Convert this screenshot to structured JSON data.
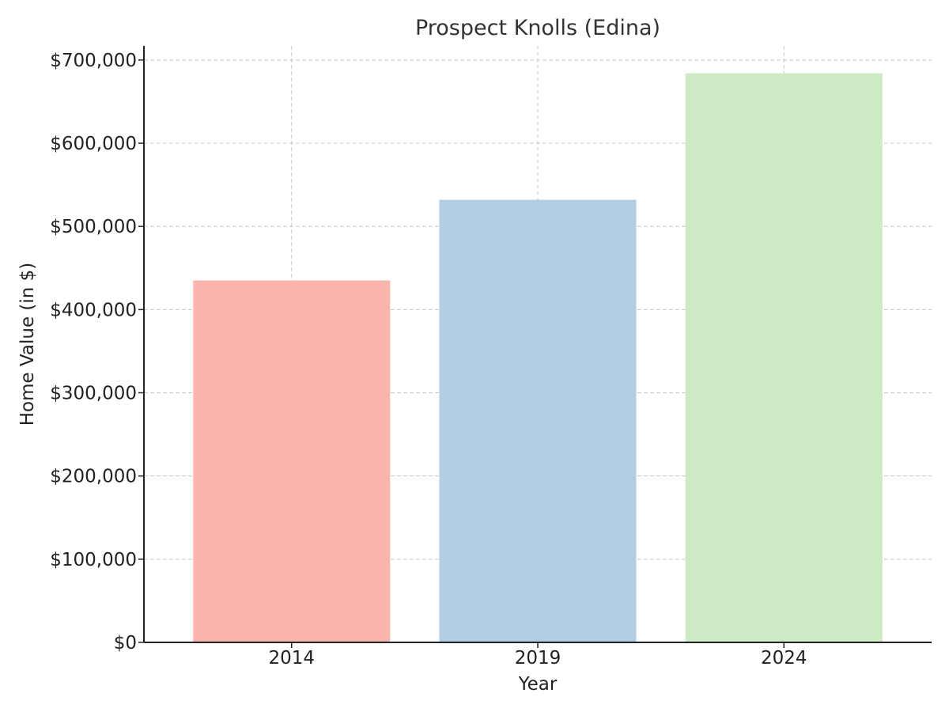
{
  "chart_data": {
    "type": "bar",
    "title": "Prospect Knolls (Edina)",
    "xlabel": "Year",
    "ylabel": "Home Value (in $)",
    "categories": [
      "2014",
      "2019",
      "2024"
    ],
    "values": [
      435000,
      532000,
      684000
    ],
    "colors": [
      "#fbb4ae",
      "#b3cde3",
      "#ccebc5"
    ],
    "ylim": [
      0,
      717000
    ],
    "yticks": [
      0,
      100000,
      200000,
      300000,
      400000,
      500000,
      600000,
      700000
    ],
    "ytick_labels": [
      "$0",
      "$100,000",
      "$200,000",
      "$300,000",
      "$400,000",
      "$500,000",
      "$600,000",
      "$700,000"
    ],
    "grid": true,
    "legend": "none"
  }
}
